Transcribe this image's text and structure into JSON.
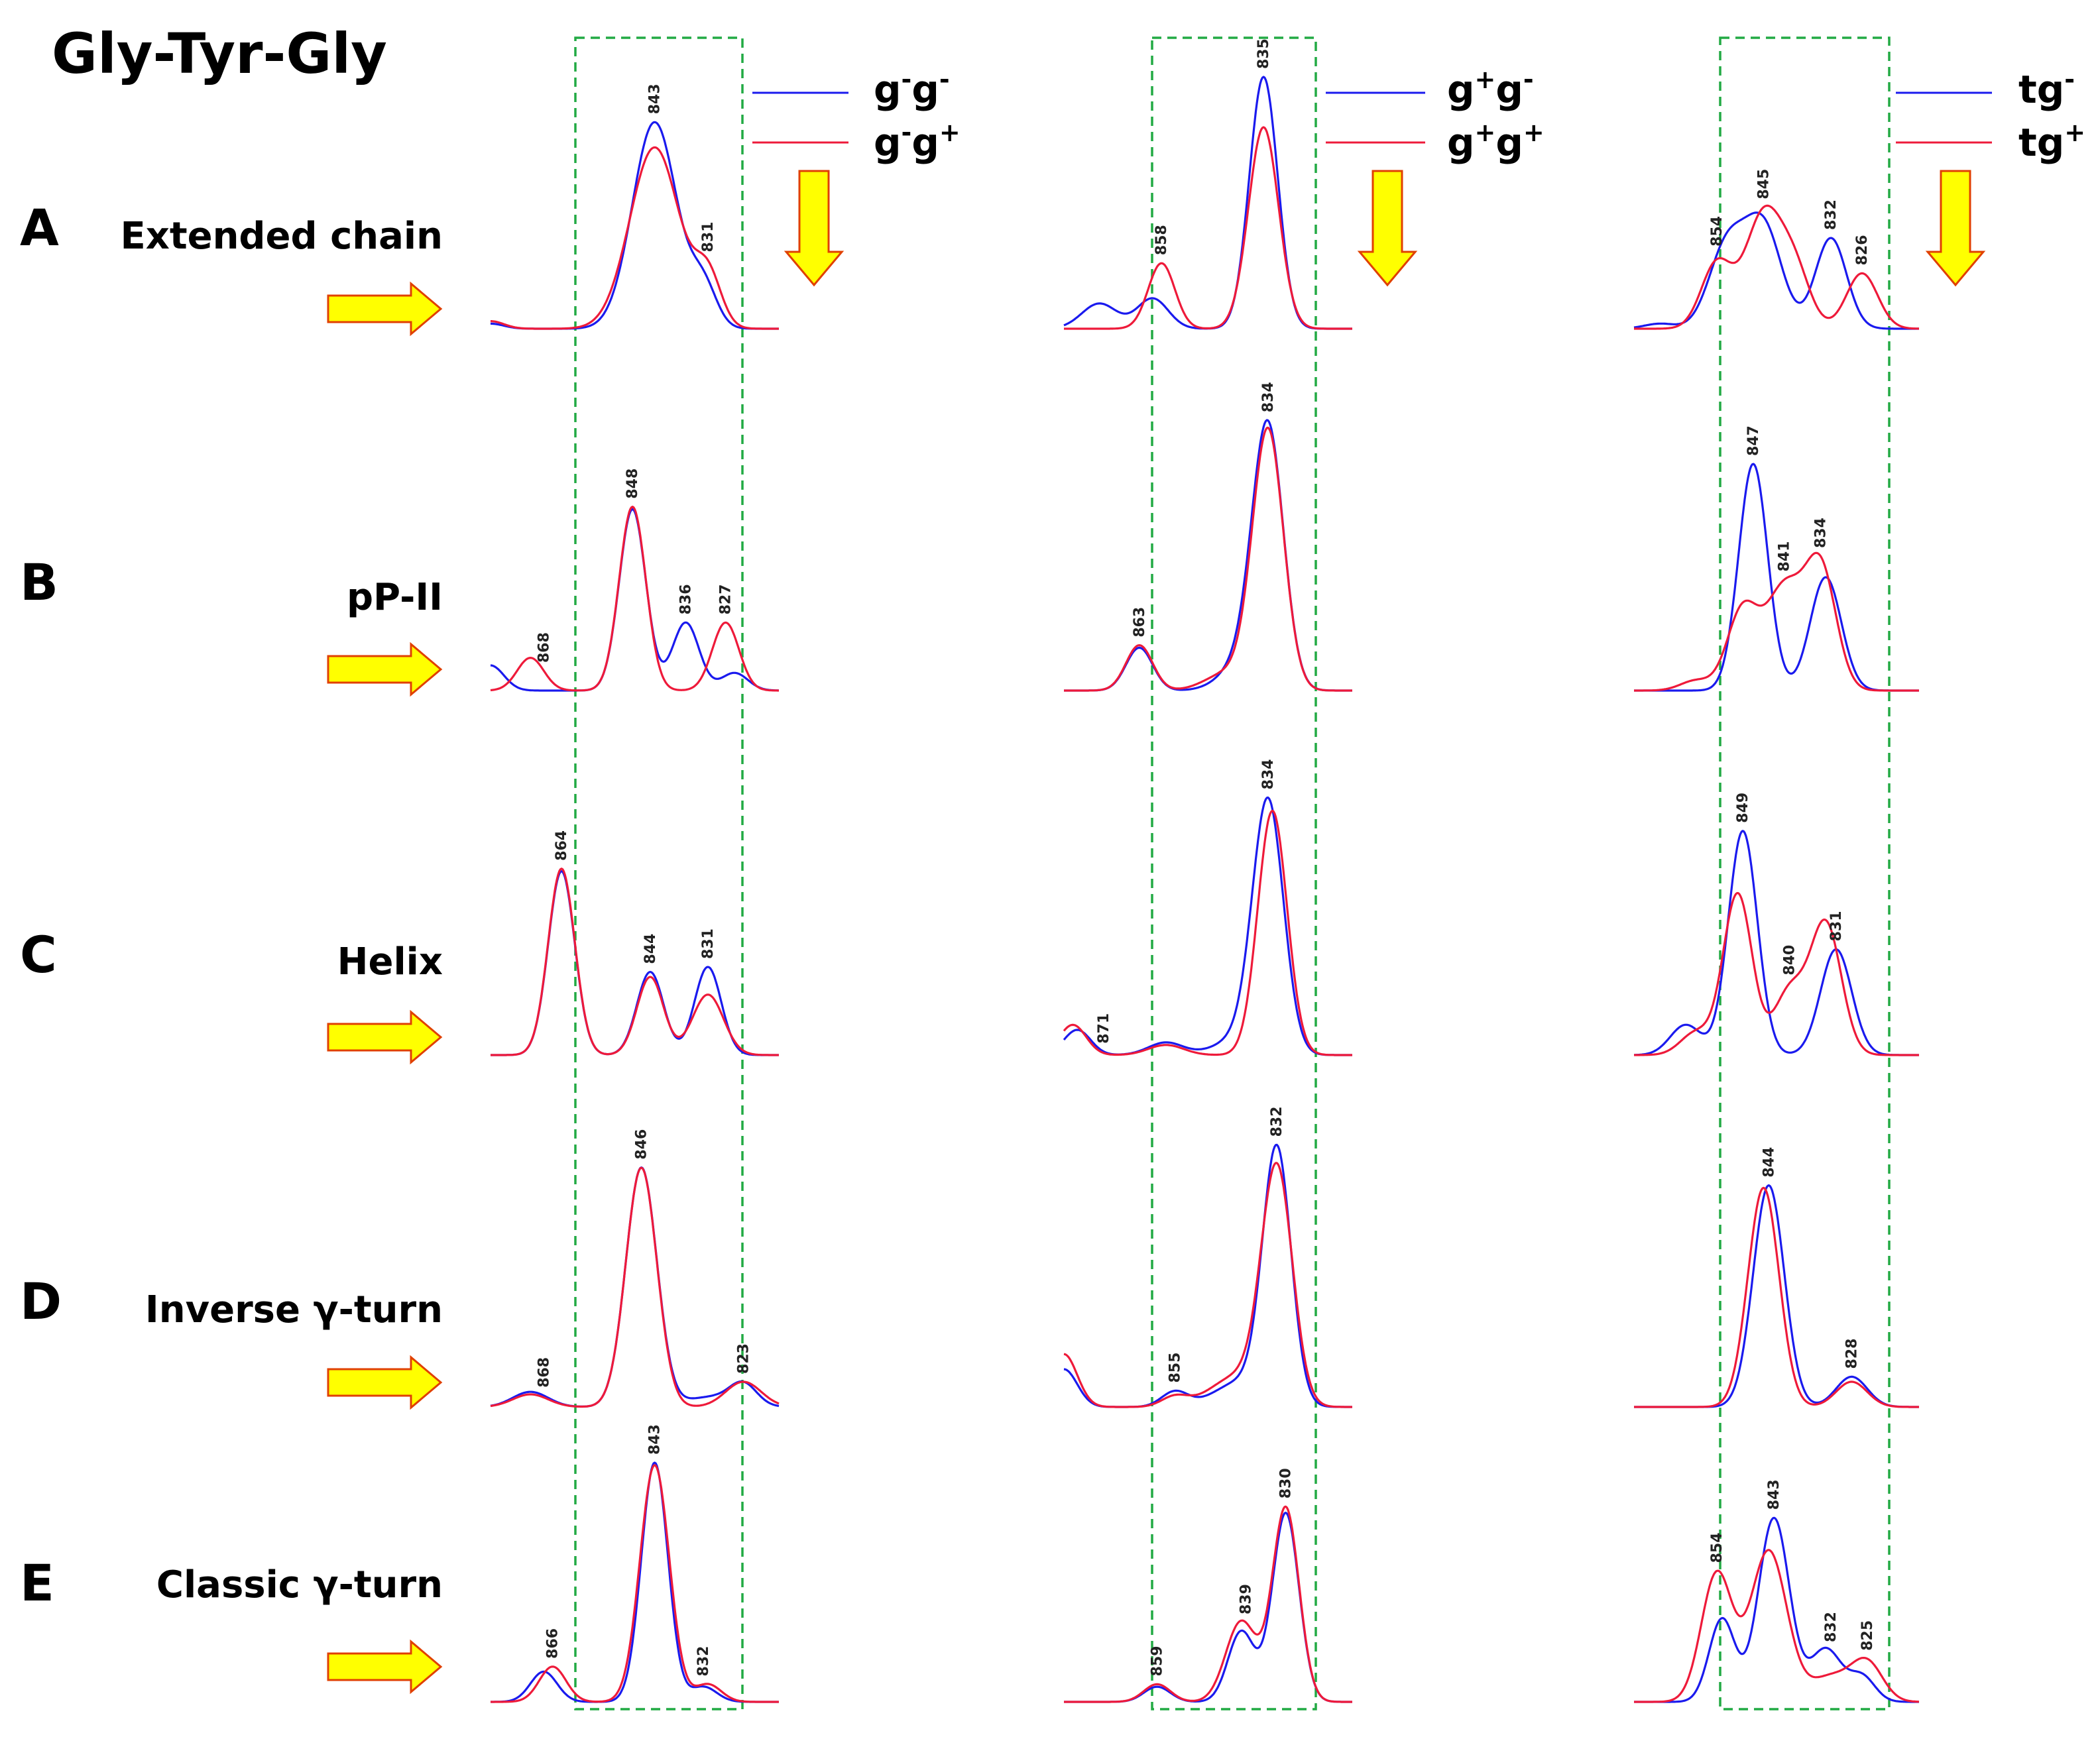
{
  "title": "Gly-Tyr-Gly",
  "colors": {
    "blue": "#1a1aee",
    "red": "#ee1a3a",
    "box": "#22aa44",
    "arrow_fill": "#ffff00",
    "arrow_stroke": "#e04000"
  },
  "rows": [
    {
      "letter": "A",
      "label": "Extended chain"
    },
    {
      "letter": "B",
      "label": "pP-II"
    },
    {
      "letter": "C",
      "label": "Helix"
    },
    {
      "letter": "D",
      "label": "Inverse γ-turn"
    },
    {
      "letter": "E",
      "label": "Classic γ-turn"
    }
  ],
  "legends": [
    {
      "blue": {
        "base": "g",
        "sup1": "-",
        "mid": "g",
        "sup2": "-"
      },
      "red": {
        "base": "g",
        "sup1": "-",
        "mid": "g",
        "sup2": "+"
      }
    },
    {
      "blue": {
        "base": "g",
        "sup1": "+",
        "mid": "g",
        "sup2": "-"
      },
      "red": {
        "base": "g",
        "sup1": "+",
        "mid": "g",
        "sup2": "+"
      }
    },
    {
      "blue": {
        "base": "tg",
        "sup1": "",
        "mid": "",
        "sup2": "-"
      },
      "red": {
        "base": "tg",
        "sup1": "",
        "mid": "",
        "sup2": "+"
      }
    }
  ],
  "chart_data": {
    "type": "line",
    "x_unit": "cm-1 (decreasing left to right)",
    "x_range": [
      880,
      815
    ],
    "highlight_window_cm1": [
      860,
      822
    ],
    "panels": [
      {
        "row": "A",
        "col": 0,
        "x_start": 880,
        "x_end": 815,
        "blue": [
          [
            880,
            0.02,
            3
          ],
          [
            843,
            0.82,
            5.0
          ],
          [
            832,
            0.16,
            3.0
          ]
        ],
        "red": [
          [
            880,
            0.03,
            3
          ],
          [
            843,
            0.72,
            5.6
          ],
          [
            831,
            0.2,
            3.0
          ]
        ],
        "labels": [
          843,
          831
        ]
      },
      {
        "row": "A",
        "col": 1,
        "x_start": 880,
        "x_end": 815,
        "blue": [
          [
            872,
            0.1,
            4.0
          ],
          [
            860,
            0.12,
            3.5
          ],
          [
            835,
            1.0,
            3.2
          ]
        ],
        "red": [
          [
            858,
            0.26,
            3.0
          ],
          [
            835,
            0.8,
            3.4
          ]
        ],
        "labels": [
          858,
          835
        ]
      },
      {
        "row": "A",
        "col": 2,
        "x_start": 870,
        "x_end": 815,
        "blue": [
          [
            852,
            0.33,
            3.5
          ],
          [
            845,
            0.4,
            3.5
          ],
          [
            832,
            0.36,
            3.0
          ],
          [
            865,
            0.02,
            3.0
          ]
        ],
        "red": [
          [
            854,
            0.26,
            3.0
          ],
          [
            845,
            0.45,
            3.5
          ],
          [
            839,
            0.22,
            3.0
          ],
          [
            826,
            0.22,
            3.0
          ]
        ],
        "labels": [
          854,
          845,
          832,
          826
        ]
      },
      {
        "row": "B",
        "col": 0,
        "x_start": 880,
        "x_end": 815,
        "blue": [
          [
            880,
            0.1,
            3.0
          ],
          [
            848,
            0.72,
            3.0
          ],
          [
            836,
            0.27,
            3.0
          ],
          [
            825,
            0.07,
            3.0
          ]
        ],
        "red": [
          [
            871,
            0.13,
            3.0
          ],
          [
            848,
            0.73,
            3.0
          ],
          [
            827,
            0.27,
            3.0
          ]
        ],
        "labels": [
          868,
          848,
          836,
          827
        ]
      },
      {
        "row": "B",
        "col": 1,
        "x_start": 880,
        "x_end": 815,
        "blue": [
          [
            863,
            0.17,
            3.0
          ],
          [
            839,
            0.12,
            5.0
          ],
          [
            834,
            1.0,
            3.5
          ]
        ],
        "red": [
          [
            863,
            0.18,
            3.0
          ],
          [
            843,
            0.07,
            5.0
          ],
          [
            834,
            1.03,
            3.5
          ]
        ],
        "labels": [
          863,
          834
        ]
      },
      {
        "row": "B",
        "col": 2,
        "x_start": 870,
        "x_end": 815,
        "blue": [
          [
            847,
            0.9,
            2.8
          ],
          [
            833,
            0.45,
            3.0
          ]
        ],
        "red": [
          [
            858,
            0.04,
            3.0
          ],
          [
            849,
            0.32,
            3.0
          ],
          [
            841,
            0.4,
            3.5
          ],
          [
            834,
            0.48,
            3.0
          ]
        ],
        "labels": [
          847,
          841,
          834
        ]
      },
      {
        "row": "C",
        "col": 0,
        "x_start": 880,
        "x_end": 815,
        "blue": [
          [
            864,
            0.73,
            3.0
          ],
          [
            844,
            0.33,
            3.0
          ],
          [
            831,
            0.35,
            3.0
          ]
        ],
        "red": [
          [
            864,
            0.74,
            3.0
          ],
          [
            844,
            0.31,
            3.0
          ],
          [
            831,
            0.24,
            3.5
          ]
        ],
        "labels": [
          864,
          844,
          831
        ]
      },
      {
        "row": "C",
        "col": 1,
        "x_start": 880,
        "x_end": 815,
        "blue": [
          [
            877,
            0.1,
            3.0
          ],
          [
            857,
            0.05,
            4.0
          ],
          [
            841,
            0.06,
            5.0
          ],
          [
            834,
            1.0,
            3.5
          ]
        ],
        "red": [
          [
            878,
            0.12,
            3.0
          ],
          [
            857,
            0.04,
            4.0
          ],
          [
            833,
            0.97,
            3.3
          ]
        ],
        "labels": [
          871,
          834
        ]
      },
      {
        "row": "C",
        "col": 2,
        "x_start": 870,
        "x_end": 815,
        "blue": [
          [
            860,
            0.12,
            3.0
          ],
          [
            849,
            0.89,
            2.8
          ],
          [
            831,
            0.42,
            3.0
          ]
        ],
        "red": [
          [
            858,
            0.09,
            3.0
          ],
          [
            850,
            0.64,
            2.8
          ],
          [
            840,
            0.25,
            3.0
          ],
          [
            833,
            0.52,
            3.0
          ]
        ],
        "labels": [
          849,
          840,
          831
        ]
      },
      {
        "row": "D",
        "col": 0,
        "x_start": 880,
        "x_end": 815,
        "blue": [
          [
            871,
            0.06,
            4.0
          ],
          [
            846,
            0.95,
            3.5
          ],
          [
            830,
            0.04,
            6.0
          ],
          [
            823,
            0.08,
            3.0
          ]
        ],
        "red": [
          [
            871,
            0.05,
            4.0
          ],
          [
            846,
            0.95,
            3.5
          ],
          [
            823,
            0.1,
            4.0
          ]
        ],
        "labels": [
          868,
          846,
          823
        ]
      },
      {
        "row": "D",
        "col": 1,
        "x_start": 880,
        "x_end": 815,
        "blue": [
          [
            880,
            0.15,
            3.0
          ],
          [
            855,
            0.06,
            3.0
          ],
          [
            840,
            0.1,
            6.0
          ],
          [
            832,
            1.0,
            3.2
          ]
        ],
        "red": [
          [
            880,
            0.21,
            3.0
          ],
          [
            855,
            0.04,
            3.0
          ],
          [
            841,
            0.12,
            6.0
          ],
          [
            832,
            0.93,
            3.5
          ]
        ],
        "labels": [
          855,
          832
        ]
      },
      {
        "row": "D",
        "col": 2,
        "x_start": 870,
        "x_end": 815,
        "blue": [
          [
            844,
            0.88,
            3.0
          ],
          [
            828,
            0.12,
            3.0
          ]
        ],
        "red": [
          [
            845,
            0.87,
            3.0
          ],
          [
            828,
            0.1,
            3.0
          ]
        ],
        "labels": [
          844,
          828
        ]
      },
      {
        "row": "E",
        "col": 0,
        "x_start": 880,
        "x_end": 815,
        "blue": [
          [
            868,
            0.12,
            3.0
          ],
          [
            843,
            0.95,
            3.0
          ],
          [
            832,
            0.06,
            3.0
          ]
        ],
        "red": [
          [
            866,
            0.14,
            3.0
          ],
          [
            843,
            0.94,
            3.3
          ],
          [
            831,
            0.07,
            3.0
          ]
        ],
        "labels": [
          866,
          843,
          832
        ]
      },
      {
        "row": "E",
        "col": 1,
        "x_start": 880,
        "x_end": 815,
        "blue": [
          [
            859,
            0.06,
            3.0
          ],
          [
            840,
            0.28,
            3.0
          ],
          [
            830,
            0.75,
            3.0
          ]
        ],
        "red": [
          [
            859,
            0.07,
            3.0
          ],
          [
            840,
            0.32,
            3.5
          ],
          [
            830,
            0.77,
            3.0
          ]
        ],
        "labels": [
          859,
          839,
          830
        ]
      },
      {
        "row": "E",
        "col": 2,
        "x_start": 870,
        "x_end": 815,
        "blue": [
          [
            853,
            0.33,
            2.5
          ],
          [
            843,
            0.73,
            3.0
          ],
          [
            833,
            0.21,
            3.0
          ],
          [
            826,
            0.1,
            2.5
          ]
        ],
        "red": [
          [
            854,
            0.51,
            3.0
          ],
          [
            844,
            0.6,
            3.5
          ],
          [
            832,
            0.1,
            4.0
          ],
          [
            825,
            0.15,
            3.0
          ]
        ],
        "labels": [
          854,
          843,
          832,
          825
        ]
      }
    ]
  }
}
